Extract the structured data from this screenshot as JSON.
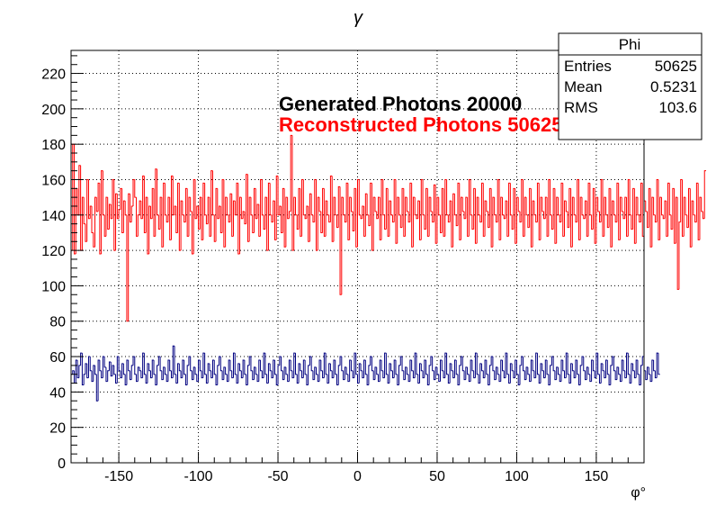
{
  "chart_data": {
    "type": "bar",
    "title": "γ",
    "xlabel": "φ°",
    "ylabel": "",
    "xlim": [
      -180,
      180
    ],
    "ylim": [
      0,
      233
    ],
    "xticks": [
      -150,
      -100,
      -50,
      0,
      50,
      100,
      150
    ],
    "yticks": [
      0,
      20,
      40,
      60,
      80,
      100,
      120,
      140,
      160,
      180,
      200,
      220
    ],
    "grid": true,
    "stats_box": {
      "title": "Phi",
      "rows": [
        {
          "label": "Entries",
          "value": "50625"
        },
        {
          "label": "Mean",
          "value": "0.5231"
        },
        {
          "label": "RMS",
          "value": "103.6"
        }
      ]
    },
    "annotations": [
      {
        "text": "Generated Photons 20000",
        "color": "#000000"
      },
      {
        "text": "Reconstructed Photons 50625",
        "color": "#ff0000"
      }
    ],
    "series": [
      {
        "color": "#ff0000",
        "bin_width": 1,
        "values": [
          120,
          180,
          118,
          155,
          140,
          168,
          120,
          150,
          135,
          125,
          160,
          138,
          145,
          130,
          122,
          150,
          142,
          158,
          118,
          165,
          140,
          128,
          150,
          132,
          146,
          138,
          160,
          120,
          152,
          138,
          143,
          155,
          130,
          148,
          140,
          80,
          152,
          136,
          145,
          160,
          150,
          128,
          140,
          148,
          138,
          162,
          130,
          150,
          118,
          145,
          138,
          155,
          128,
          166,
          140,
          132,
          150,
          122,
          158,
          140,
          136,
          150,
          126,
          162,
          140,
          145,
          130,
          158,
          120,
          148,
          140,
          136,
          155,
          128,
          150,
          142,
          118,
          160,
          138,
          145,
          132,
          150,
          126,
          158,
          140,
          135,
          150,
          128,
          165,
          140,
          125,
          155,
          138,
          145,
          130,
          160,
          122,
          150,
          140,
          136,
          152,
          128,
          148,
          140,
          158,
          118,
          150,
          138,
          142,
          135,
          163,
          125,
          150,
          140,
          130,
          155,
          138,
          146,
          128,
          160,
          140,
          132,
          150,
          120,
          158,
          140,
          136,
          148,
          126,
          162,
          140,
          145,
          130,
          155,
          122,
          150,
          138,
          142,
          185,
          120,
          150,
          140,
          132,
          155,
          128,
          160,
          140,
          138,
          145,
          125,
          152,
          140,
          136,
          160,
          120,
          150,
          142,
          130,
          155,
          128,
          148,
          140,
          136,
          162,
          125,
          150,
          140,
          133,
          156,
          95,
          150,
          140,
          136,
          158,
          126,
          150,
          142,
          131,
          155,
          122,
          160,
          140,
          138,
          145,
          128,
          152,
          140,
          134,
          158,
          120,
          150,
          142,
          138,
          150,
          126,
          160,
          140,
          132,
          155,
          128,
          148,
          140,
          136,
          160,
          124,
          150,
          140,
          133,
          155,
          128,
          150,
          142,
          136,
          158,
          122,
          150,
          140,
          138,
          148,
          126,
          160,
          140,
          132,
          155,
          128,
          150,
          142,
          136,
          157,
          124,
          150,
          140,
          130,
          155,
          128,
          160,
          140,
          136,
          148,
          122,
          152,
          140,
          134,
          158,
          126,
          150,
          142,
          138,
          150,
          128,
          160,
          140,
          132,
          155,
          124,
          150,
          140,
          136,
          158,
          128,
          148,
          142,
          133,
          155,
          122,
          150,
          140,
          136,
          160,
          126,
          150,
          140,
          138,
          148,
          128,
          158,
          140,
          132,
          155,
          124,
          150,
          142,
          136,
          160,
          128,
          150,
          140,
          133,
          155,
          122,
          148,
          140,
          136,
          158,
          126,
          150,
          142,
          138,
          150,
          128,
          160,
          140,
          132,
          155,
          124,
          150,
          140,
          136,
          158,
          128,
          148,
          142,
          133,
          155,
          122,
          150,
          140,
          136,
          160,
          126,
          150,
          140,
          138,
          148,
          128,
          158,
          140,
          132,
          155,
          124,
          150,
          142,
          136,
          160,
          128,
          150,
          140,
          133,
          155,
          122,
          148,
          140,
          136,
          158,
          126,
          150,
          142,
          138,
          150,
          128,
          160,
          140,
          132,
          155,
          124,
          150,
          140,
          136,
          158,
          128,
          148,
          142,
          133,
          155,
          122,
          150,
          140,
          136,
          160,
          126,
          150,
          140,
          138,
          148,
          128,
          158,
          140,
          132,
          155,
          124,
          150,
          98,
          136,
          160,
          128,
          150,
          140,
          133,
          155,
          122,
          148,
          140,
          136,
          158,
          126,
          150,
          142,
          138,
          165
        ]
      },
      {
        "color": "#000080",
        "bin_width": 1,
        "values": [
          50,
          52,
          45,
          58,
          48,
          55,
          62,
          44,
          50,
          56,
          48,
          60,
          52,
          46,
          55,
          50,
          35,
          58,
          52,
          48,
          60,
          54,
          46,
          52,
          57,
          49,
          55,
          50,
          45,
          60,
          52,
          48,
          56,
          50,
          44,
          58,
          52,
          47,
          55,
          60,
          50,
          46,
          54,
          52,
          48,
          62,
          50,
          45,
          56,
          52,
          48,
          58,
          50,
          44,
          55,
          60,
          52,
          47,
          54,
          50,
          46,
          58,
          52,
          48,
          66,
          50,
          45,
          56,
          52,
          48,
          58,
          50,
          44,
          55,
          60,
          52,
          47,
          54,
          50,
          46,
          58,
          52,
          48,
          62,
          50,
          45,
          56,
          52,
          48,
          58,
          50,
          44,
          55,
          60,
          52,
          47,
          54,
          50,
          46,
          58,
          52,
          48,
          62,
          50,
          45,
          56,
          52,
          48,
          58,
          50,
          44,
          55,
          60,
          52,
          47,
          54,
          50,
          46,
          58,
          52,
          48,
          62,
          50,
          45,
          56,
          52,
          48,
          58,
          50,
          44,
          55,
          60,
          52,
          47,
          54,
          50,
          46,
          58,
          52,
          48,
          62,
          50,
          45,
          56,
          52,
          48,
          58,
          50,
          44,
          55,
          60,
          52,
          47,
          54,
          50,
          46,
          58,
          52,
          48,
          62,
          50,
          45,
          56,
          52,
          48,
          58,
          50,
          44,
          55,
          60,
          52,
          47,
          54,
          50,
          46,
          58,
          52,
          48,
          62,
          50,
          45,
          56,
          52,
          48,
          58,
          50,
          44,
          55,
          60,
          52,
          47,
          54,
          50,
          46,
          58,
          52,
          48,
          62,
          50,
          45,
          56,
          52,
          48,
          58,
          50,
          44,
          55,
          60,
          52,
          47,
          54,
          50,
          46,
          58,
          52,
          48,
          62,
          50,
          45,
          56,
          52,
          48,
          58,
          50,
          44,
          55,
          60,
          52,
          47,
          54,
          50,
          46,
          58,
          52,
          48,
          62,
          50,
          45,
          56,
          52,
          48,
          58,
          50,
          44,
          55,
          60,
          52,
          47,
          54,
          50,
          46,
          58,
          52,
          48,
          62,
          50,
          45,
          56,
          52,
          48,
          58,
          50,
          44,
          55,
          60,
          52,
          47,
          54,
          50,
          46,
          58,
          52,
          48,
          62,
          50,
          45,
          56,
          52,
          48,
          58,
          50,
          44,
          55,
          60,
          52,
          47,
          54,
          50,
          46,
          58,
          52,
          48,
          62,
          50,
          45,
          56,
          52,
          48,
          58,
          50,
          44,
          55,
          60,
          52,
          47,
          54,
          50,
          46,
          58,
          52,
          48,
          62,
          50,
          45,
          56,
          52,
          48,
          58,
          50,
          44,
          55,
          60,
          52,
          47,
          54,
          50,
          46,
          58,
          52,
          48,
          62,
          50,
          45,
          56,
          52,
          48,
          58,
          50,
          44,
          55,
          60,
          52,
          47,
          54,
          50,
          46,
          58,
          52,
          48,
          62,
          50,
          45,
          56,
          52,
          48,
          58,
          50,
          44,
          55,
          60,
          52,
          47,
          54,
          50,
          46,
          58,
          52,
          48,
          62,
          50
        ]
      }
    ]
  }
}
